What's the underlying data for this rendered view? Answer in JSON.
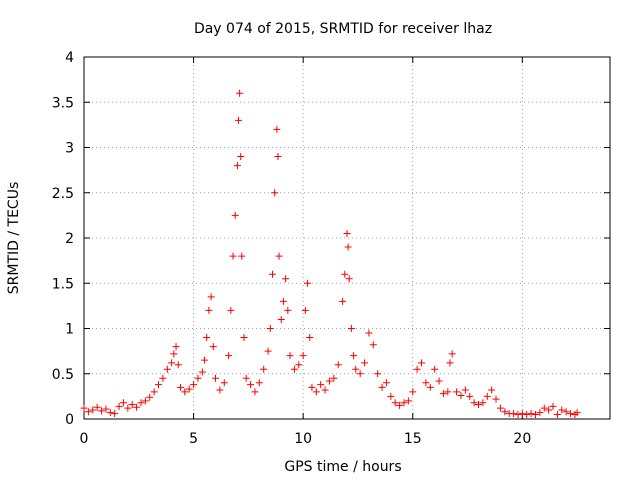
{
  "chart_data": {
    "type": "scatter",
    "title": "Day 074 of 2015, SRMTID for receiver lhaz",
    "xlabel": "GPS time / hours",
    "ylabel": "SRMTID / TECUs",
    "xlim": [
      0,
      24
    ],
    "ylim": [
      0,
      4
    ],
    "xticks": [
      0,
      5,
      10,
      15,
      20
    ],
    "xtick_labels": [
      "0",
      "5",
      "10",
      "15",
      "20"
    ],
    "yticks": [
      0,
      0.5,
      1,
      1.5,
      2,
      2.5,
      3,
      3.5,
      4
    ],
    "ytick_labels": [
      "0",
      "0.5",
      "1",
      "1.5",
      "2",
      "2.5",
      "3",
      "3.5",
      "4"
    ],
    "grid": true,
    "marker": "+",
    "series_color": "#ff0000",
    "series": [
      {
        "name": "SRMTID",
        "points": [
          [
            0.0,
            0.12
          ],
          [
            0.2,
            0.08
          ],
          [
            0.4,
            0.1
          ],
          [
            0.6,
            0.13
          ],
          [
            0.8,
            0.09
          ],
          [
            1.0,
            0.11
          ],
          [
            1.2,
            0.07
          ],
          [
            1.4,
            0.06
          ],
          [
            1.6,
            0.14
          ],
          [
            1.8,
            0.18
          ],
          [
            2.0,
            0.12
          ],
          [
            2.2,
            0.16
          ],
          [
            2.4,
            0.13
          ],
          [
            2.6,
            0.18
          ],
          [
            2.8,
            0.2
          ],
          [
            3.0,
            0.24
          ],
          [
            3.2,
            0.3
          ],
          [
            3.4,
            0.38
          ],
          [
            3.6,
            0.45
          ],
          [
            3.8,
            0.55
          ],
          [
            4.0,
            0.62
          ],
          [
            4.1,
            0.72
          ],
          [
            4.2,
            0.8
          ],
          [
            4.3,
            0.6
          ],
          [
            4.4,
            0.35
          ],
          [
            4.6,
            0.3
          ],
          [
            4.8,
            0.33
          ],
          [
            5.0,
            0.38
          ],
          [
            5.2,
            0.45
          ],
          [
            5.4,
            0.52
          ],
          [
            5.5,
            0.65
          ],
          [
            5.6,
            0.9
          ],
          [
            5.7,
            1.2
          ],
          [
            5.8,
            1.35
          ],
          [
            5.9,
            0.8
          ],
          [
            6.0,
            0.45
          ],
          [
            6.2,
            0.32
          ],
          [
            6.4,
            0.4
          ],
          [
            6.6,
            0.7
          ],
          [
            6.7,
            1.2
          ],
          [
            6.8,
            1.8
          ],
          [
            6.9,
            2.25
          ],
          [
            7.0,
            2.8
          ],
          [
            7.05,
            3.3
          ],
          [
            7.1,
            3.6
          ],
          [
            7.15,
            2.9
          ],
          [
            7.2,
            1.8
          ],
          [
            7.3,
            0.9
          ],
          [
            7.4,
            0.45
          ],
          [
            7.6,
            0.38
          ],
          [
            7.8,
            0.3
          ],
          [
            8.0,
            0.4
          ],
          [
            8.2,
            0.55
          ],
          [
            8.4,
            0.75
          ],
          [
            8.5,
            1.0
          ],
          [
            8.6,
            1.6
          ],
          [
            8.7,
            2.5
          ],
          [
            8.8,
            3.2
          ],
          [
            8.85,
            2.9
          ],
          [
            8.9,
            1.8
          ],
          [
            9.0,
            1.1
          ],
          [
            9.1,
            1.3
          ],
          [
            9.2,
            1.55
          ],
          [
            9.3,
            1.2
          ],
          [
            9.4,
            0.7
          ],
          [
            9.6,
            0.55
          ],
          [
            9.8,
            0.6
          ],
          [
            10.0,
            0.7
          ],
          [
            10.1,
            1.2
          ],
          [
            10.2,
            1.5
          ],
          [
            10.3,
            0.9
          ],
          [
            10.4,
            0.35
          ],
          [
            10.6,
            0.3
          ],
          [
            10.8,
            0.38
          ],
          [
            11.0,
            0.32
          ],
          [
            11.2,
            0.42
          ],
          [
            11.4,
            0.45
          ],
          [
            11.6,
            0.6
          ],
          [
            11.8,
            1.3
          ],
          [
            11.9,
            1.6
          ],
          [
            12.0,
            2.05
          ],
          [
            12.05,
            1.9
          ],
          [
            12.1,
            1.55
          ],
          [
            12.2,
            1.0
          ],
          [
            12.3,
            0.7
          ],
          [
            12.4,
            0.55
          ],
          [
            12.6,
            0.5
          ],
          [
            12.8,
            0.62
          ],
          [
            13.0,
            0.95
          ],
          [
            13.2,
            0.82
          ],
          [
            13.4,
            0.5
          ],
          [
            13.6,
            0.35
          ],
          [
            13.8,
            0.4
          ],
          [
            14.0,
            0.25
          ],
          [
            14.2,
            0.18
          ],
          [
            14.4,
            0.15
          ],
          [
            14.6,
            0.18
          ],
          [
            14.8,
            0.2
          ],
          [
            15.0,
            0.3
          ],
          [
            15.2,
            0.55
          ],
          [
            15.4,
            0.62
          ],
          [
            15.6,
            0.4
          ],
          [
            15.8,
            0.35
          ],
          [
            16.0,
            0.55
          ],
          [
            16.2,
            0.42
          ],
          [
            16.4,
            0.28
          ],
          [
            16.6,
            0.3
          ],
          [
            16.7,
            0.62
          ],
          [
            16.8,
            0.72
          ],
          [
            17.0,
            0.3
          ],
          [
            17.2,
            0.26
          ],
          [
            17.4,
            0.32
          ],
          [
            17.6,
            0.25
          ],
          [
            17.8,
            0.18
          ],
          [
            18.0,
            0.16
          ],
          [
            18.2,
            0.18
          ],
          [
            18.4,
            0.25
          ],
          [
            18.6,
            0.32
          ],
          [
            18.8,
            0.22
          ],
          [
            19.0,
            0.12
          ],
          [
            19.2,
            0.08
          ],
          [
            19.4,
            0.06
          ],
          [
            19.6,
            0.06
          ],
          [
            19.8,
            0.05
          ],
          [
            20.0,
            0.06
          ],
          [
            20.2,
            0.05
          ],
          [
            20.4,
            0.06
          ],
          [
            20.6,
            0.05
          ],
          [
            20.8,
            0.07
          ],
          [
            21.0,
            0.12
          ],
          [
            21.2,
            0.1
          ],
          [
            21.4,
            0.14
          ],
          [
            21.6,
            0.05
          ],
          [
            21.8,
            0.1
          ],
          [
            22.0,
            0.08
          ],
          [
            22.2,
            0.06
          ],
          [
            22.4,
            0.05
          ],
          [
            22.5,
            0.07
          ]
        ]
      }
    ]
  }
}
